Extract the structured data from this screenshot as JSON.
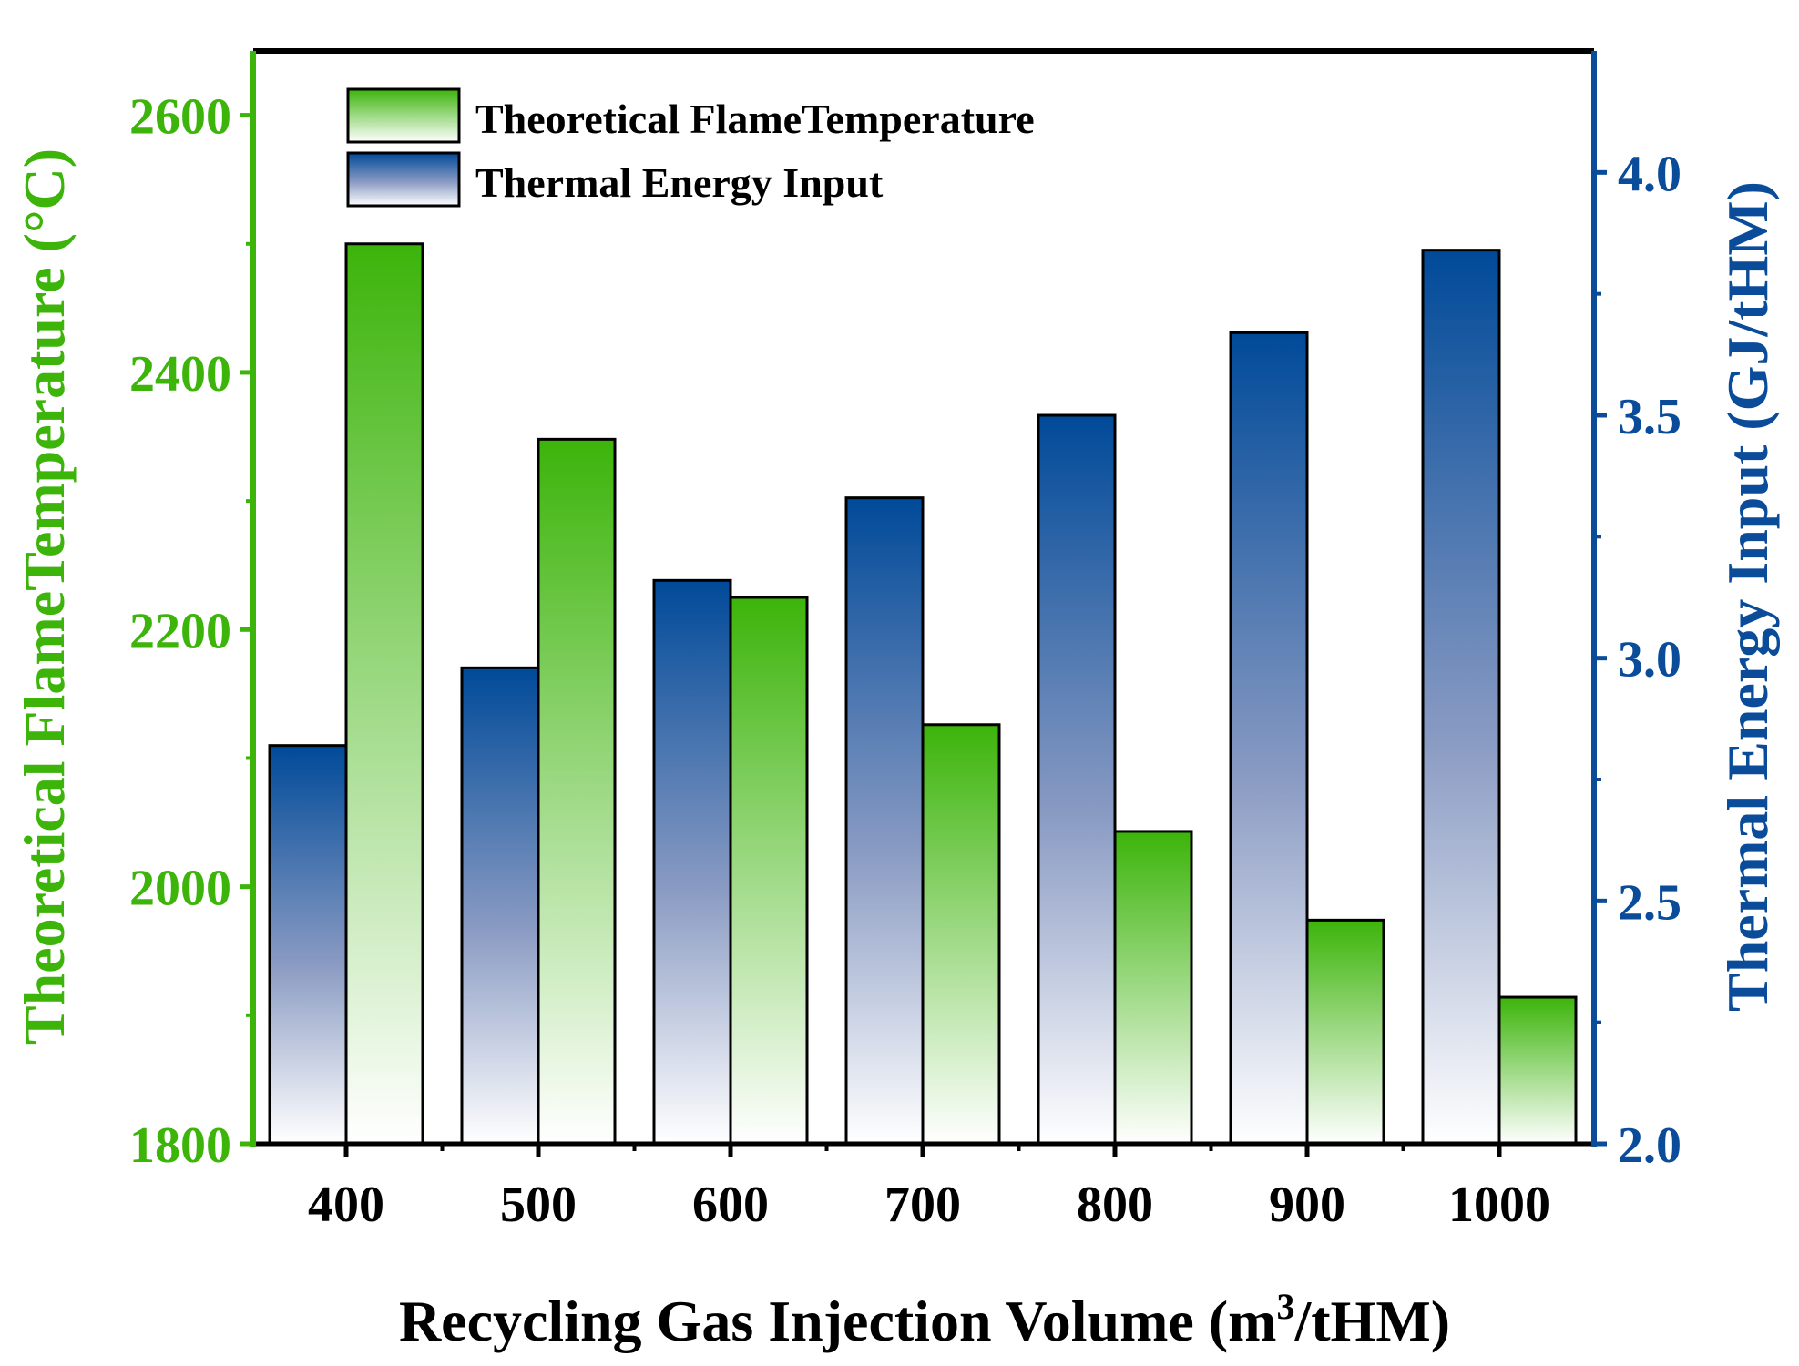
{
  "chart_data": {
    "type": "bar",
    "xlabel": "Recycling Gas Injection Volume (m",
    "xlabel_sup": "3",
    "xlabel_end": "/tHM)",
    "categories": [
      "400",
      "500",
      "600",
      "700",
      "800",
      "900",
      "1000"
    ],
    "series": [
      {
        "name": "Thermal Energy Input",
        "axis": "right",
        "color": "#0a4c9a",
        "values": [
          2.82,
          2.98,
          3.16,
          3.33,
          3.5,
          3.67,
          3.84
        ]
      },
      {
        "name": "Theoretical FlameTemperature",
        "axis": "left",
        "color": "#3cb40a",
        "values": [
          2500,
          2348,
          2225,
          2126,
          2043,
          1974,
          1914
        ]
      }
    ],
    "left_axis": {
      "label": "Theoretical FlameTemperature (°C)",
      "range": [
        1800,
        2650
      ],
      "ticks": [
        "1800",
        "2000",
        "2200",
        "2400",
        "2600"
      ],
      "color": "#3cb40a"
    },
    "right_axis": {
      "label": "Thermal Energy Input (GJ/tHM)",
      "range": [
        2.0,
        4.25
      ],
      "ticks": [
        "2.0",
        "2.5",
        "3.0",
        "3.5",
        "4.0"
      ],
      "color": "#0a4c9a"
    },
    "legend": {
      "position": "top-left",
      "entries": [
        "Theoretical FlameTemperature",
        "Thermal Energy Input"
      ]
    }
  }
}
